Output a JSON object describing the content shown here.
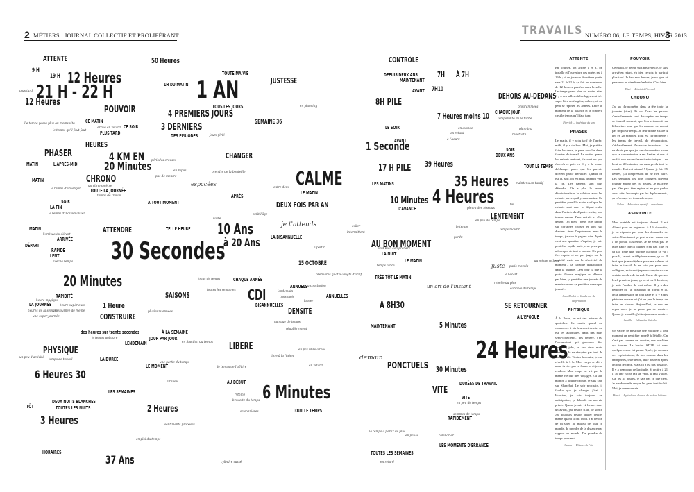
{
  "header": {
    "left_page_number": "2",
    "left_running_head": "MÉTIERS : JOURNAL COLLECTIF ET PROLIFÉRANT",
    "section_title": "TRAVAILS",
    "right_running_head": "NUMÉRO 06, LE TEMPS, HIVER 2013",
    "right_page_number": "3"
  },
  "cloud": [
    "ATTENTE",
    "9 H",
    "19 H",
    "12 Heures",
    "21 H - 22 H",
    "12 Heures",
    "POUVOIR",
    "CE MATIN",
    "CE SOIR",
    "PLUS TARD",
    "HEURES",
    "PHASER",
    "MATIN",
    "L'APRÈS-MIDI",
    "MATIN",
    "CHRONO",
    "TOUTE LA JOURNÉE",
    "SOIR",
    "LA FIN",
    "4 KM EN",
    "20 Minutes",
    "MATIN",
    "DÉPART",
    "ARRIVÉE",
    "RAPIDE",
    "LENT",
    "ATTENDRE",
    "30 Secondes",
    "20 Minutes",
    "RAPIDITÉ",
    "LA JOURNÉE",
    "1 Heure",
    "CONSTRUIRE",
    "PHYSIQUE",
    "LA DURÉE",
    "LENDEMAIN",
    "6 Heures 30",
    "3 Heures",
    "37 Ans",
    "HORAIRES",
    "TÔT",
    "DEUX NUITS BLANCHES",
    "TOUTES LES NUITS",
    "LE MOMENT",
    "LES SEMAINES",
    "2 Heures",
    "50 Heures",
    "1H DU MATIN",
    "TOUTE MA VIE",
    "1 AN",
    "TOUS LES JOURS",
    "4 PREMIERS JOURS",
    "3 DERNIERS",
    "DES PÉRIODES",
    "JUSTESSE",
    "SEMAINE 36",
    "CHANGER",
    "CALME",
    "LE MATIN",
    "DEUX FOIS PAR AN",
    "APRÈS",
    "À TOUT MOMENT",
    "TELLE HEURE",
    "10 Ans",
    "à 20 Ans",
    "je t'attends",
    "LA BISANNUELLE",
    "CHAQUE ANNÉE",
    "CDI",
    "BISANNUELLES",
    "ANNUELS",
    "ANNUELLES",
    "DENSITÉ",
    "15 OCTOBRE",
    "SAISONS",
    "À LA SEMAINE",
    "JOUR PAR JOUR",
    "LIBÉRÉ",
    "AU DÉBUT",
    "6 Minutes",
    "TOUT LE TEMPS",
    "CONTRÔLE",
    "DEPUIS DEUX ANS",
    "MAINTENANT",
    "AVANT",
    "8H PILE",
    "LE SOIR",
    "1 Seconde",
    "AVANT",
    "17 H PILE",
    "LES MATINS",
    "10 Minutes",
    "D'AVANCE",
    "AU BON MOMENT",
    "LA NUIT",
    "LE MATIN",
    "TRÈS TÔT LE MATIN",
    "À 8H30",
    "MAINTENANT",
    "PONCTUELS",
    "demain",
    "7H",
    "À 7H",
    "7H10",
    "DEHORS AU-DEDANS",
    "CHAQUE JOUR",
    "7 Heures moins 10",
    "39 Heures",
    "SOIR",
    "DEUX ANS",
    "TOUT LE TEMPS",
    "35 Heures",
    "4 Heures",
    "LENTEMENT",
    "SE RETOURNER",
    "À L'ÉPOQUE",
    "5 Minutes",
    "24 Heures",
    "30 Minutes",
    "DURÉES DE TRAVAIL",
    "VITE",
    "VITE",
    "RAPIDEMENT",
    "LES MOMENTS D'ERRANCE",
    "TOUTES LES SEMAINES",
    "espacées",
    "un art de l'instant",
    "juste"
  ],
  "cloud_small": [
    "Le temps passe plus ou moins vite",
    "arrivé en retard",
    "plus tard",
    "le temps qu'il faut faut",
    "un chronomètre",
    "le temps d'échanger",
    "temps de travail",
    "le temps d'individualiser",
    "l'arrivée du départ",
    "avec le temps",
    "heure supérieure",
    "heures de la semaine",
    "heure magique",
    "une journée de même",
    "une super journée",
    "des heures sur trente secondes",
    "le temps qui dure",
    "un peu d'activité",
    "temps de travail",
    "une partie du temps",
    "le temps de l'affaire",
    "attendu",
    "sentiments proposés",
    "emploi du temps",
    "cylindre cassé",
    "en planning",
    "jours férié",
    "périodes creuses",
    "en repos",
    "pas de montre",
    "prendre de la bouteille",
    "entre deux",
    "petit l'âge",
    "vaste",
    "à partir",
    "premières quatre-vingts d'acrif",
    "longs de temps",
    "toutes les semaines",
    "lendemain",
    "trois mois",
    "lancer",
    "à la conclusion",
    "intermittent",
    "manque de temps",
    "régulièrement",
    "en fonction du temps",
    "plusieurs années",
    "libre à la fusion",
    "en retard",
    "en pas libre à tous",
    "rythme",
    "brouette du temps",
    "saisonnières",
    "la temps à partir de plus",
    "en pause",
    "calendrier",
    "en retard",
    "programmées",
    "temporalité de la tâche",
    "planning",
    "réactivité",
    "en avance",
    "en retard",
    "à l'heure",
    "maintenu en tardif",
    "pleurs des réseaux",
    "temps mourir",
    "le temps",
    "tôt",
    "en peu de temps",
    "perdu",
    "paris morsés",
    "au même rythme",
    "à l'écart",
    "rebelle du plus",
    "cardiolo de temps",
    "sommes de temps",
    "en peu de temps",
    "exiler",
    "temps lancé",
    "peut bien comprendre",
    "au bon moment"
  ],
  "column1": {
    "sections": [
      {
        "head": "ATTENTE",
        "text": "En tournée, on arrive à 9 h, on installe et l'ouverture des portes est à 19 h ; si on joue on deuxième partie vers 21 h-22 h, ça fait un minimum de 12 heures passées dans la salle. Le temps passe plus ou moins vite. Il y a des salles où les loges sont très super bien aménagées, calmes, où on peut se reposer les années. Entre le moment de la balance et le concert, c'est le temps qu'il faut tuer.",
        "sig": "Pierrick — ingénieur du son"
      },
      {
        "head": "PHASER",
        "text": "Le matin, il y a du tarif de l'après-midi, il y a du bon. Moi, je préfère faire les deux, je peux voir les deux facettes du travail. Le matin, quand les enfants arrivent, ils sont un peu énervés et puis en il y a le temps d'échanger parce que les parents doivent partir travailler. Quand on est là, soir, on est plus détendu vers la fin. Les parents sont plus détendus. On a plus le temps d'individualiser la relation avec les enfants parce qu'il y en a moins. Ça peut être pareil le matin sauf que les enfants sont dans le départ enfin dans l'arrivée du départ… enfin, tout tourne autour d'une arrivée et d'un départ. Oh bien, j'peux être rapide sur certaines choses et lent sur d'autres. Avec l'expérience, avec le temps, j'arrive à gagner vite. Après c'est une question d'équipe, je suis peut-être rapide mais je ne peux pas m'occuper de tout le monde. On peut être rapide et ne pas juger sur la rapidité mais sur la réactivité du moment… la capacité d'adaptation dans la journée. C'est pour ça que la porte d'heure magique ou d'heure pas bien, ça peut être une journée de merde comme ça peut être une super journée.",
        "sig": "Joan Merlot — Gardienne de l'Infirmation"
      },
      {
        "head": "PHYSIQUE",
        "text": "À la Poste, on est des acteurs du quotidien. Le matin quand on commence à six heures et demie, on est les automates, dans des états semi-conscients, des pensée, c'est l'inconscient qui gouverne. Sur certaines jobs, je fais deux nuits blanches. Je ne récupère pas tout. Je me lève tôt. Toutes les nuits, je me réveille à 3 h. Mon corps se dit « mon. tu n'es pas en forme », et je me rendors. Mon corps ne vit pas la même vie que mes voyages. J'ai une montre à double cadran, je suis calé sur Shanghai. Le soir prochain, il faudra que je change, j'irai à Houston, je suis toujours en anticipation, ça déborde sur ma vie privée. Quand je suis 12 heures dans un avion, j'ai besoin d'air, de sortir. J'ai toujours besoin d'aller dehors même quand il fait froid. J'ai besoin de m'isoler au milieu de tout ce monde, de prendre de la distance par rapport au monde. De prendre du temps pour moi.",
        "sig": "Ivanoe — Hôtesse de l'air"
      }
    ]
  },
  "column2": {
    "sections": [
      {
        "head": "POUVOIR",
        "text": "Ce matin, je ne me suis pas réveillé, je suis arrivé en retard, eh bien ce soir, je partirai plus tard. Je fais mes heures, je ne gère et personne ne viendra m'embêter. C'est bien.",
        "sig": "Rémi — Attaché à l'accueil"
      },
      {
        "head": "CHRONO",
        "text": "J'ai un chronomètre dans la tête toute la journée (rires). Et sur l'eau les phases d'entraînements sont découpées en temps de travail souvent, que l'on retranscrit en kilomètres pour que les rameurs ne voient pas trop leur temps. Je leur donne à faire 4 km en 20 minutes. Tout est chronométré : les temps de travail, de récupération, d'échauffement, d'exercice technique… Je ne dirais pas que j'ai un chronomètre parce que la concentration a ses limites et que si on fait une heure d'exercice technique… au bout de 20 minutes, on aura perdu tout le monde. Tout est minuté ! Quand je fais 35 heures, j'ai l'impression de ne rien faire. Les semaines les plus chargées doivent tourner autour des 50 heures. Je m'arrête pas. On peut être rapide et ne pas parler aussi vite. Je compte pas les déplacements, ça m'occupe les temps de repos.",
        "sig": "Nolan — Éducateur sportif — entraîneur"
      },
      {
        "head": "ASTREINTE",
        "text": "Mon portable est toujours allumé. Il est allumé pour les urgences. À 1 h du matin, je ne réponds pas pour les demandes de soins. Maintenant ça peut arriver quand on a un portail d'astreinte. Je ne veux pas le faire parce que la journée n'est pas finie et ça fait toute une journée ou pluie ça va ; puis là, la nuit le téléphone sonne, ça va. Il faut que je me déplace pour me relever et faire le travail. Je ne sais pas pour mes collègues, mais moi je peux compter sur un certain nombre de travail. On se dit que sur les 4 premiers jours, ça va et les 3 derniers, je suis l'ombre de moi-même. Il y a des périodes où j'ai beaucoup de travail et là, on a l'impression de tout faire et il y a des périodes creuses où j'ai un peu le temps de faire les choses. Aujourd'hui, je suis en repos alors je ne peux pas de montre. Quand je travaille, j'ai toujours une montre.",
        "sig": "Anaëlle — Infirmière libérale"
      },
      {
        "head": "",
        "text": "Un vache, ce n'est pas une machine, à tout moment on peut être appelé à l'étable. On n'est pas comme un ouvrier, une machine qui tourne. Le boulot STOP. Ici sans quelque chose lui passe. Après, je connais des exploitations, ils font comme dans les entreprises, telle heure, telle heure et après on fout le camp. Mais ça n'est pas possible. Il y a beaucoup de lassitude. Si on tire à 21 h 30 une vache fait un veau, il faut y aller. Ça, les 35 heures, je sais pas ce que c'est. Je me demande ce que les gens font à côté. Moi, je m'ennuierais.",
        "sig": "Henri — Agriculteur, éleveur de vaches laitières"
      }
    ]
  }
}
